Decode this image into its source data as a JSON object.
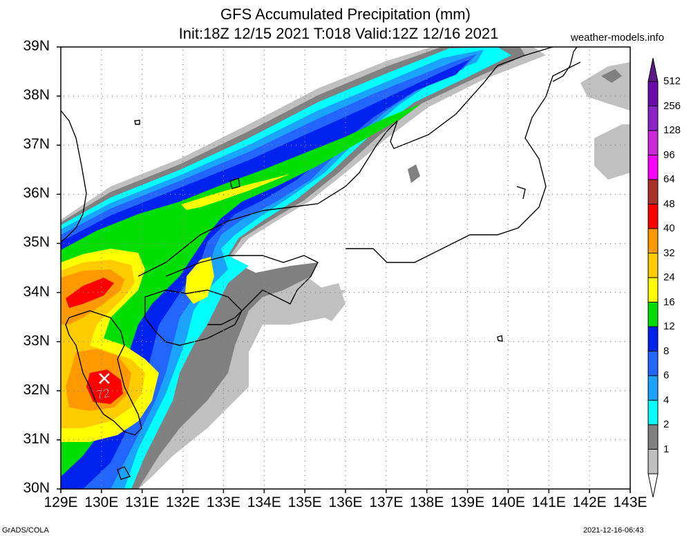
{
  "title": "GFS Accumulated Precipitation (mm)",
  "subtitle": "Init:18Z 12/15 2021 T:018 Valid:12Z 12/16 2021",
  "site": "weather-models.info",
  "footer_left": "GrADS/COLA",
  "footer_right": "2021-12-16-06:43",
  "lat_labels": [
    "39N",
    "38N",
    "37N",
    "36N",
    "35N",
    "34N",
    "33N",
    "32N",
    "31N",
    "30N"
  ],
  "lon_labels": [
    "129E",
    "130E",
    "131E",
    "132E",
    "133E",
    "134E",
    "135E",
    "136E",
    "137E",
    "138E",
    "139E",
    "140E",
    "141E",
    "142E",
    "143E"
  ],
  "max_marker": {
    "symbol": "X",
    "value": "72",
    "lon": 130.07,
    "lat": 32.25
  },
  "colorbar": {
    "levels": [
      "512",
      "256",
      "128",
      "96",
      "64",
      "48",
      "40",
      "32",
      "24",
      "16",
      "12",
      "8",
      "6",
      "4",
      "2",
      "1"
    ],
    "colors": [
      "#6a0da8",
      "#8b24c4",
      "#c828d8",
      "#ff00ff",
      "#a8322a",
      "#ff0000",
      "#ff9900",
      "#ffcc00",
      "#ffff00",
      "#00dd00",
      "#0022ee",
      "#2266ff",
      "#1aa3ff",
      "#00ffff",
      "#808080",
      "#c0c0c0"
    ],
    "top_tip_color": "#5a1a8a",
    "bottom_tip_color": "#ffffff"
  },
  "map": {
    "lon_range": [
      129,
      143
    ],
    "lat_range": [
      30,
      39
    ]
  }
}
